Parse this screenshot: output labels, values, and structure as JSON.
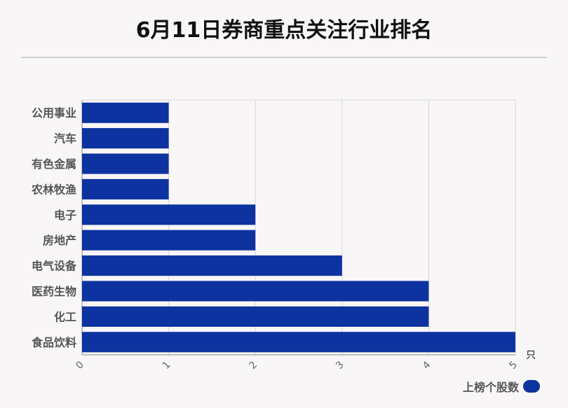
{
  "title": "6月11日券商重点关注行业排名",
  "chart_data": {
    "type": "bar",
    "orientation": "horizontal",
    "categories": [
      "公用事业",
      "汽车",
      "有色金属",
      "农林牧渔",
      "电子",
      "房地产",
      "电气设备",
      "医药生物",
      "化工",
      "食品饮料"
    ],
    "series": [
      {
        "name": "上榜个股数",
        "values": [
          1,
          1,
          1,
          1,
          2,
          2,
          3,
          4,
          4,
          5
        ]
      }
    ],
    "xlim": [
      0,
      5
    ],
    "xticks": [
      0,
      1,
      2,
      3,
      4,
      5
    ],
    "unit": "只",
    "bar_color": "#0d33a0",
    "grid": true,
    "legend_position": "bottom-right"
  }
}
